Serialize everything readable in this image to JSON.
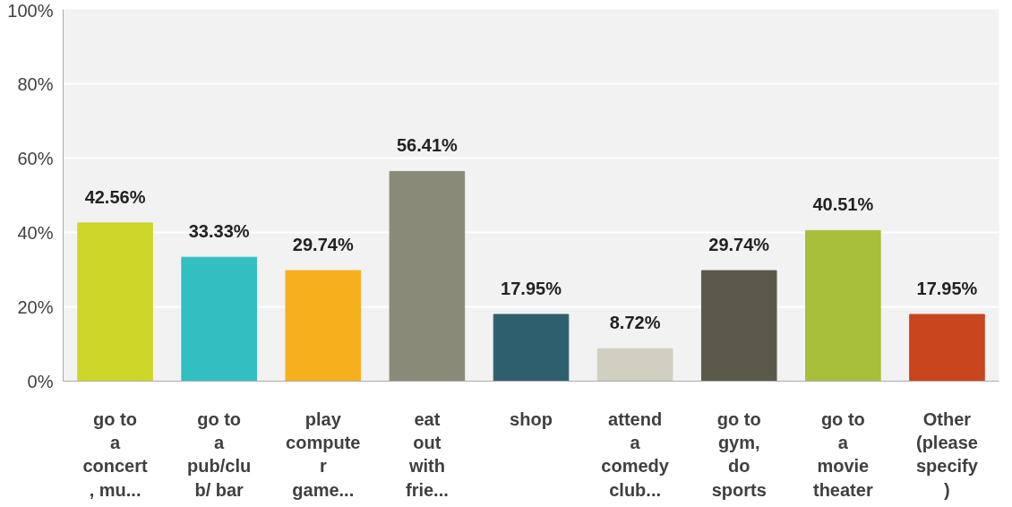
{
  "chart_data": {
    "type": "bar",
    "categories": [
      "go to\na\nconcert\n, mu...",
      "go to\na\npub/clu\nb/ bar",
      "play\ncompute\nr\ngame...",
      "eat\nout\nwith\nfrie...",
      "shop",
      "attend\na\ncomedy\nclub...",
      "go to\ngym,\ndo\nsports",
      "go to\na\nmovie\ntheater",
      "Other\n(please\nspecify\n)"
    ],
    "values": [
      42.56,
      33.33,
      29.74,
      56.41,
      17.95,
      8.72,
      29.74,
      40.51,
      17.95
    ],
    "colors": [
      "#cfd62a",
      "#33bfc1",
      "#f6b01e",
      "#8a8a78",
      "#2e5f6e",
      "#d0cfc0",
      "#5b5a4a",
      "#a8bf3a",
      "#c9451e"
    ],
    "value_labels": [
      "42.56%",
      "33.33%",
      "29.74%",
      "56.41%",
      "17.95%",
      "8.72%",
      "29.74%",
      "40.51%",
      "17.95%"
    ],
    "ylim": [
      0,
      100
    ],
    "yticks": [
      {
        "value": 0,
        "label": "0%"
      },
      {
        "value": 20,
        "label": "20%"
      },
      {
        "value": 40,
        "label": "40%"
      },
      {
        "value": 60,
        "label": "60%"
      },
      {
        "value": 80,
        "label": "80%"
      },
      {
        "value": 100,
        "label": "100%"
      }
    ],
    "grid": "y"
  }
}
